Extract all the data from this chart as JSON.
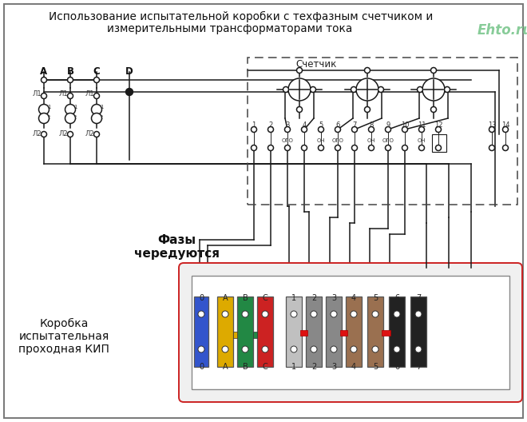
{
  "title1": "Использование испытательной коробки с техфазным счетчиком и",
  "title2": "измерительными трансформаторами тока",
  "watermark": "Ehto.ru",
  "bg": "#ffffff",
  "lc": "#1a1a1a",
  "label_schetchik": "Счетчик",
  "label_fazy": "Фазы\nчередуются",
  "label_korobka": "Коробка\nиспытательная\nпроходная КИП",
  "kip_labels": [
    "0",
    "A",
    "B",
    "C",
    "1",
    "2",
    "3",
    "4",
    "5",
    "6",
    "7"
  ],
  "kip_colors_fill": [
    "#3355cc",
    "#ddaa00",
    "#228844",
    "#cc2222",
    "#c0c0c0",
    "#888888",
    "#888888",
    "#9a7050",
    "#9a7050",
    "#222222",
    "#222222"
  ],
  "transformer_abcd": [
    "A",
    "B",
    "C",
    "D"
  ],
  "term_numbers": [
    "1",
    "2",
    "3",
    "4",
    "5",
    "6",
    "7",
    "8",
    "9",
    "10",
    "11",
    "12",
    "13",
    "14"
  ]
}
